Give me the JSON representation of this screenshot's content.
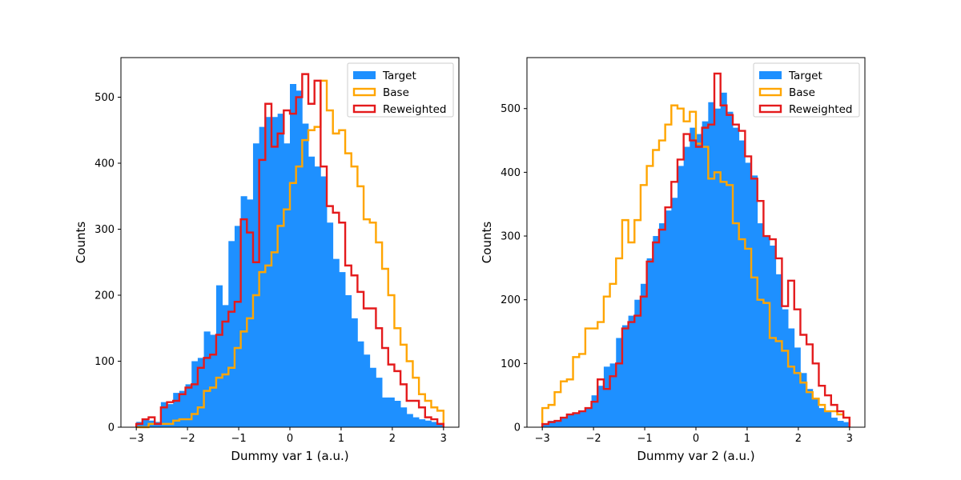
{
  "chart_data": [
    {
      "type": "histogram",
      "xlabel": "Dummy var 1 (a.u.)",
      "ylabel": "Counts",
      "xlim": [
        -3.3,
        3.3
      ],
      "ylim": [
        0,
        560
      ],
      "xticks": [
        -3,
        -2,
        -1,
        0,
        1,
        2,
        3
      ],
      "yticks": [
        0,
        100,
        200,
        300,
        400,
        500
      ],
      "bin_range": [
        -3,
        3
      ],
      "bins": 50,
      "legend": {
        "position": "top-right",
        "entries": [
          "Target",
          "Base",
          "Reweighted"
        ]
      },
      "series": [
        {
          "name": "Target",
          "style": "filled",
          "color": "#1e90ff",
          "values": [
            8,
            12,
            10,
            8,
            38,
            35,
            52,
            55,
            65,
            100,
            105,
            145,
            140,
            215,
            185,
            282,
            305,
            350,
            345,
            430,
            455,
            470,
            470,
            475,
            430,
            520,
            510,
            460,
            410,
            395,
            380,
            310,
            255,
            235,
            200,
            165,
            130,
            110,
            90,
            75,
            45,
            45,
            40,
            30,
            20,
            15,
            12,
            10,
            8,
            5
          ]
        },
        {
          "name": "Base",
          "style": "step",
          "color": "#ffa500",
          "values": [
            0,
            0,
            5,
            5,
            5,
            5,
            10,
            12,
            12,
            20,
            30,
            55,
            60,
            75,
            80,
            90,
            120,
            145,
            165,
            200,
            235,
            245,
            265,
            305,
            330,
            370,
            395,
            435,
            450,
            455,
            525,
            480,
            445,
            450,
            415,
            395,
            365,
            315,
            310,
            280,
            240,
            200,
            150,
            125,
            100,
            75,
            50,
            40,
            30,
            25
          ]
        },
        {
          "name": "Reweighted",
          "style": "step",
          "color": "#e41a1c",
          "values": [
            5,
            12,
            15,
            5,
            30,
            38,
            40,
            50,
            60,
            65,
            90,
            105,
            110,
            140,
            160,
            175,
            190,
            315,
            295,
            250,
            405,
            490,
            425,
            445,
            480,
            475,
            500,
            535,
            490,
            525,
            395,
            335,
            325,
            310,
            245,
            230,
            205,
            180,
            180,
            150,
            120,
            95,
            85,
            65,
            40,
            40,
            30,
            15,
            12,
            5
          ]
        }
      ]
    },
    {
      "type": "histogram",
      "xlabel": "Dummy var 2 (a.u.)",
      "ylabel": "Counts",
      "xlim": [
        -3.3,
        3.3
      ],
      "ylim": [
        0,
        580
      ],
      "xticks": [
        -3,
        -2,
        -1,
        0,
        1,
        2,
        3
      ],
      "yticks": [
        0,
        100,
        200,
        300,
        400,
        500
      ],
      "bin_range": [
        -3,
        3
      ],
      "bins": 50,
      "legend": {
        "position": "top-right",
        "entries": [
          "Target",
          "Base",
          "Reweighted"
        ]
      },
      "series": [
        {
          "name": "Target",
          "style": "filled",
          "color": "#1e90ff",
          "values": [
            5,
            10,
            10,
            15,
            20,
            22,
            25,
            30,
            50,
            65,
            95,
            100,
            140,
            160,
            175,
            200,
            225,
            265,
            300,
            320,
            340,
            360,
            410,
            440,
            470,
            460,
            480,
            510,
            500,
            525,
            495,
            470,
            450,
            415,
            395,
            320,
            300,
            285,
            240,
            185,
            155,
            125,
            85,
            60,
            45,
            30,
            25,
            15,
            10,
            8
          ]
        },
        {
          "name": "Base",
          "style": "step",
          "color": "#ffa500",
          "values": [
            30,
            35,
            55,
            72,
            75,
            110,
            115,
            155,
            155,
            165,
            205,
            225,
            265,
            325,
            290,
            325,
            380,
            410,
            435,
            450,
            475,
            505,
            500,
            480,
            495,
            445,
            440,
            390,
            400,
            385,
            380,
            320,
            295,
            280,
            235,
            200,
            195,
            140,
            135,
            120,
            95,
            85,
            70,
            55,
            45,
            35,
            25,
            25,
            20,
            15
          ]
        },
        {
          "name": "Reweighted",
          "style": "step",
          "color": "#e41a1c",
          "values": [
            5,
            8,
            10,
            15,
            20,
            22,
            25,
            30,
            40,
            75,
            60,
            80,
            100,
            155,
            165,
            175,
            205,
            260,
            290,
            310,
            345,
            385,
            420,
            460,
            450,
            440,
            470,
            475,
            555,
            505,
            490,
            475,
            465,
            425,
            390,
            355,
            300,
            295,
            265,
            190,
            230,
            185,
            145,
            130,
            100,
            65,
            50,
            35,
            25,
            15
          ]
        }
      ]
    }
  ]
}
